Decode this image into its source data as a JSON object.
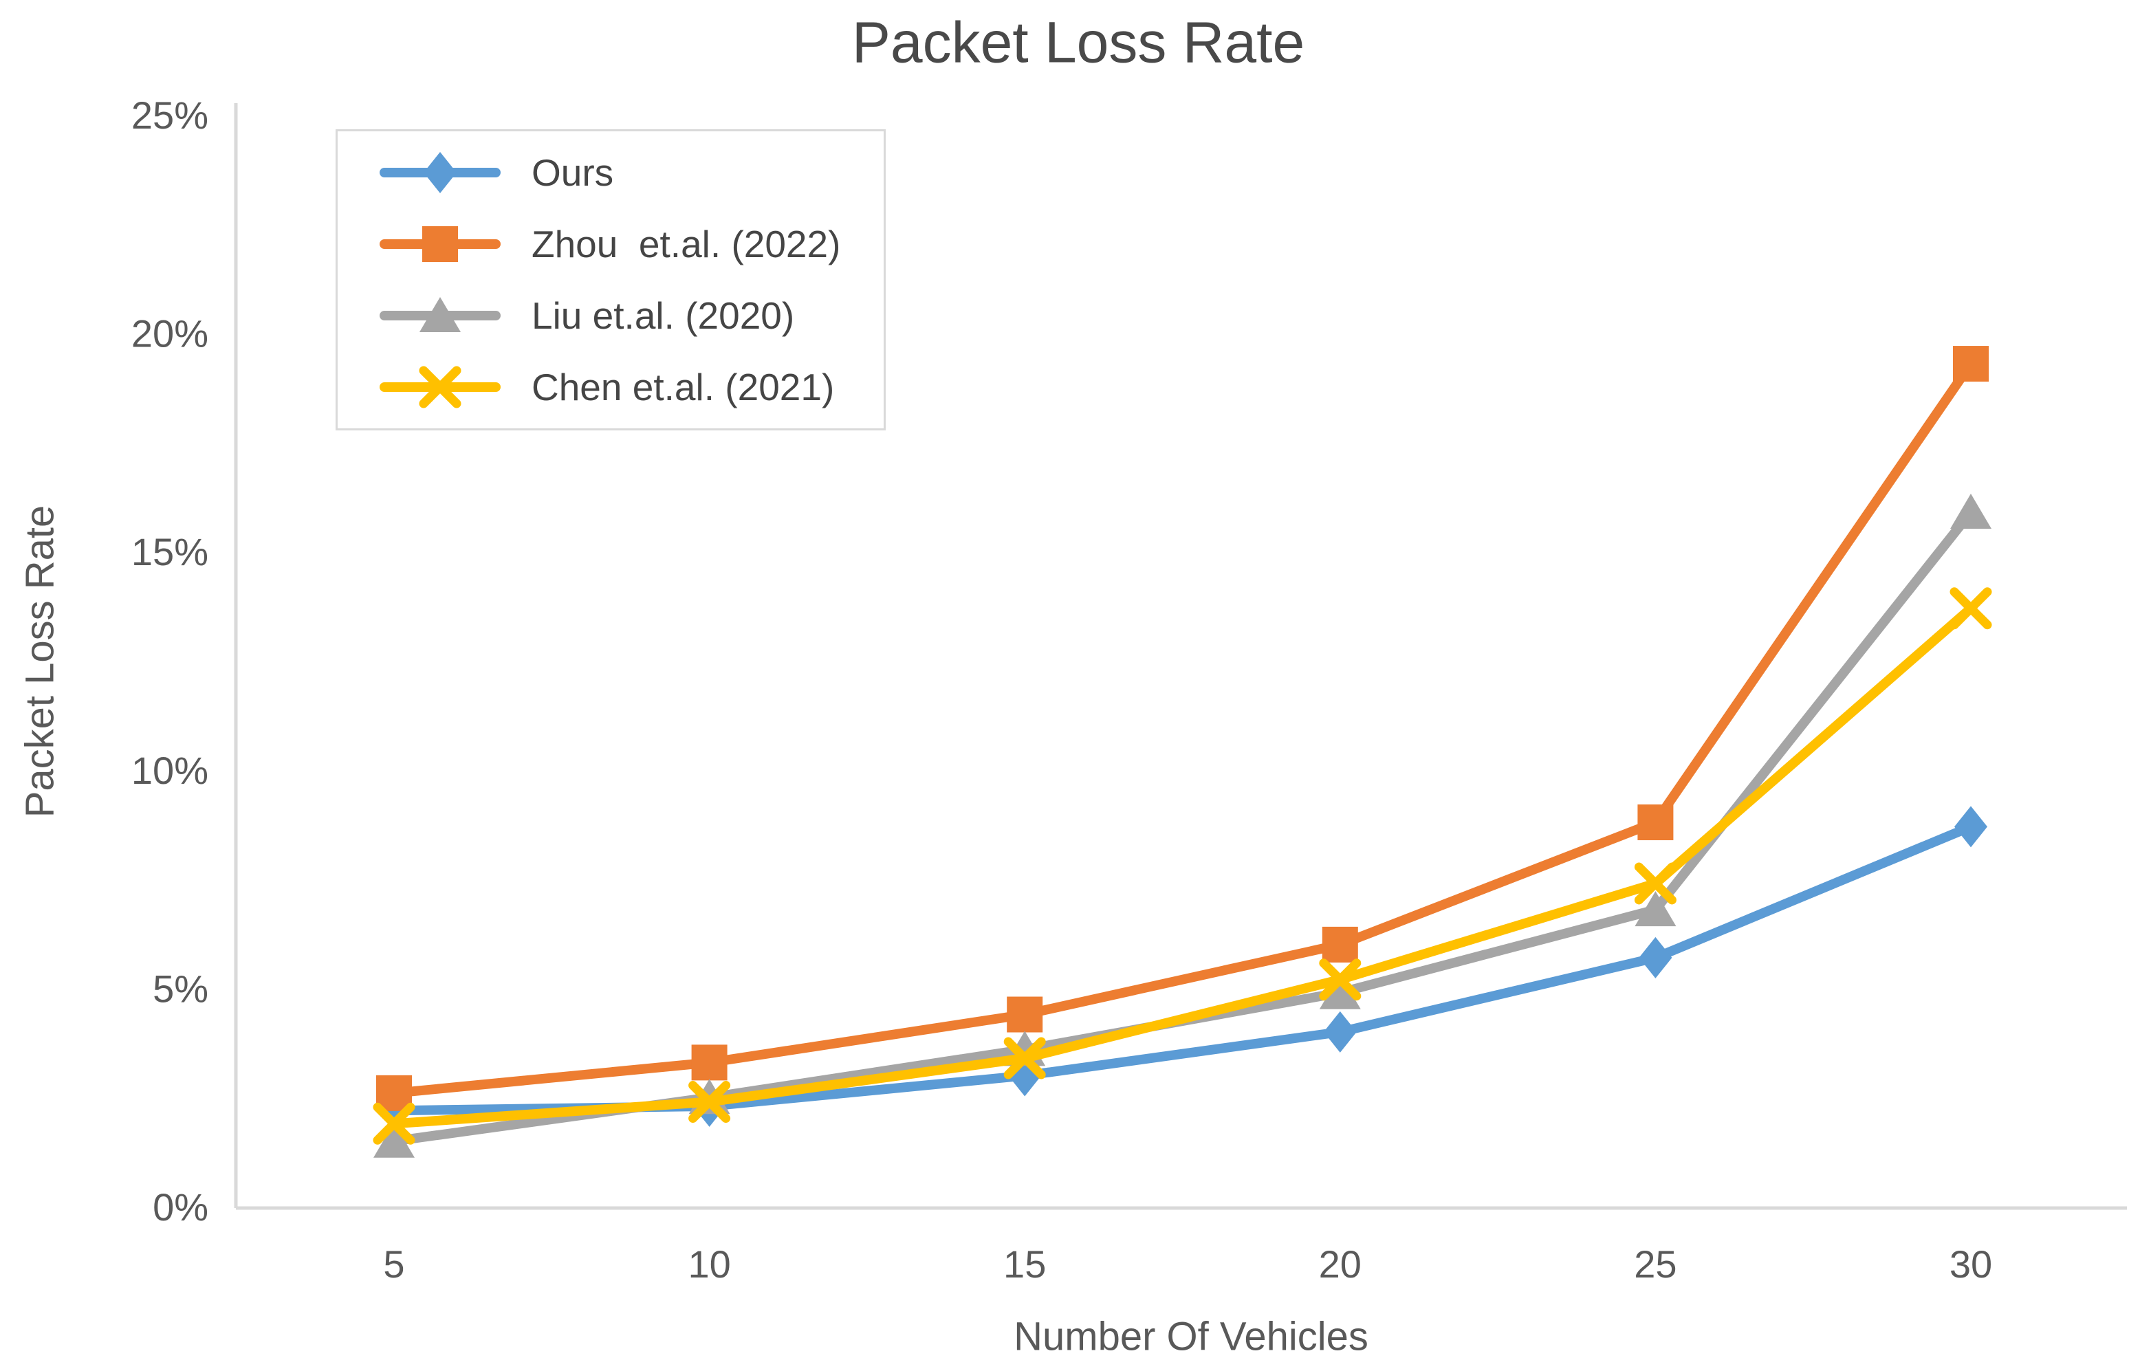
{
  "chart_data": {
    "type": "line",
    "title": "Packet Loss Rate",
    "xlabel": "Number Of Vehicles",
    "ylabel": "Packet Loss Rate",
    "categories": [
      5,
      10,
      15,
      20,
      25,
      30
    ],
    "x_tick_labels": [
      "5",
      "10",
      "15",
      "20",
      "25",
      "30"
    ],
    "y_ticks": [
      {
        "value": 0,
        "label": "0%"
      },
      {
        "value": 5,
        "label": "5%"
      },
      {
        "value": 10,
        "label": "10%"
      },
      {
        "value": 15,
        "label": "15%"
      },
      {
        "value": 20,
        "label": "20%"
      },
      {
        "value": 25,
        "label": "25%"
      }
    ],
    "ylim": [
      0,
      25
    ],
    "grid": false,
    "legend_position": "inside-top-left",
    "series": [
      {
        "name": "Ours",
        "color": "#5B9BD5",
        "marker": "diamond",
        "values": [
          2.2,
          2.3,
          3.0,
          4.0,
          5.7,
          8.7
        ]
      },
      {
        "name": "Zhou  et.al. (2022)",
        "color": "#ED7D31",
        "marker": "square",
        "values": [
          2.6,
          3.3,
          4.4,
          6.0,
          8.8,
          19.3
        ]
      },
      {
        "name": "Liu et.al. (2020)",
        "color": "#A5A5A5",
        "marker": "triangle",
        "values": [
          1.5,
          2.5,
          3.6,
          4.9,
          6.8,
          15.9
        ]
      },
      {
        "name": "Chen et.al. (2021)",
        "color": "#FFC000",
        "marker": "x",
        "values": [
          1.9,
          2.4,
          3.4,
          5.2,
          7.4,
          13.7
        ]
      }
    ],
    "colors": {
      "axis_line": "#d9d9d9",
      "tick_label": "#595959",
      "title": "#494949"
    }
  }
}
